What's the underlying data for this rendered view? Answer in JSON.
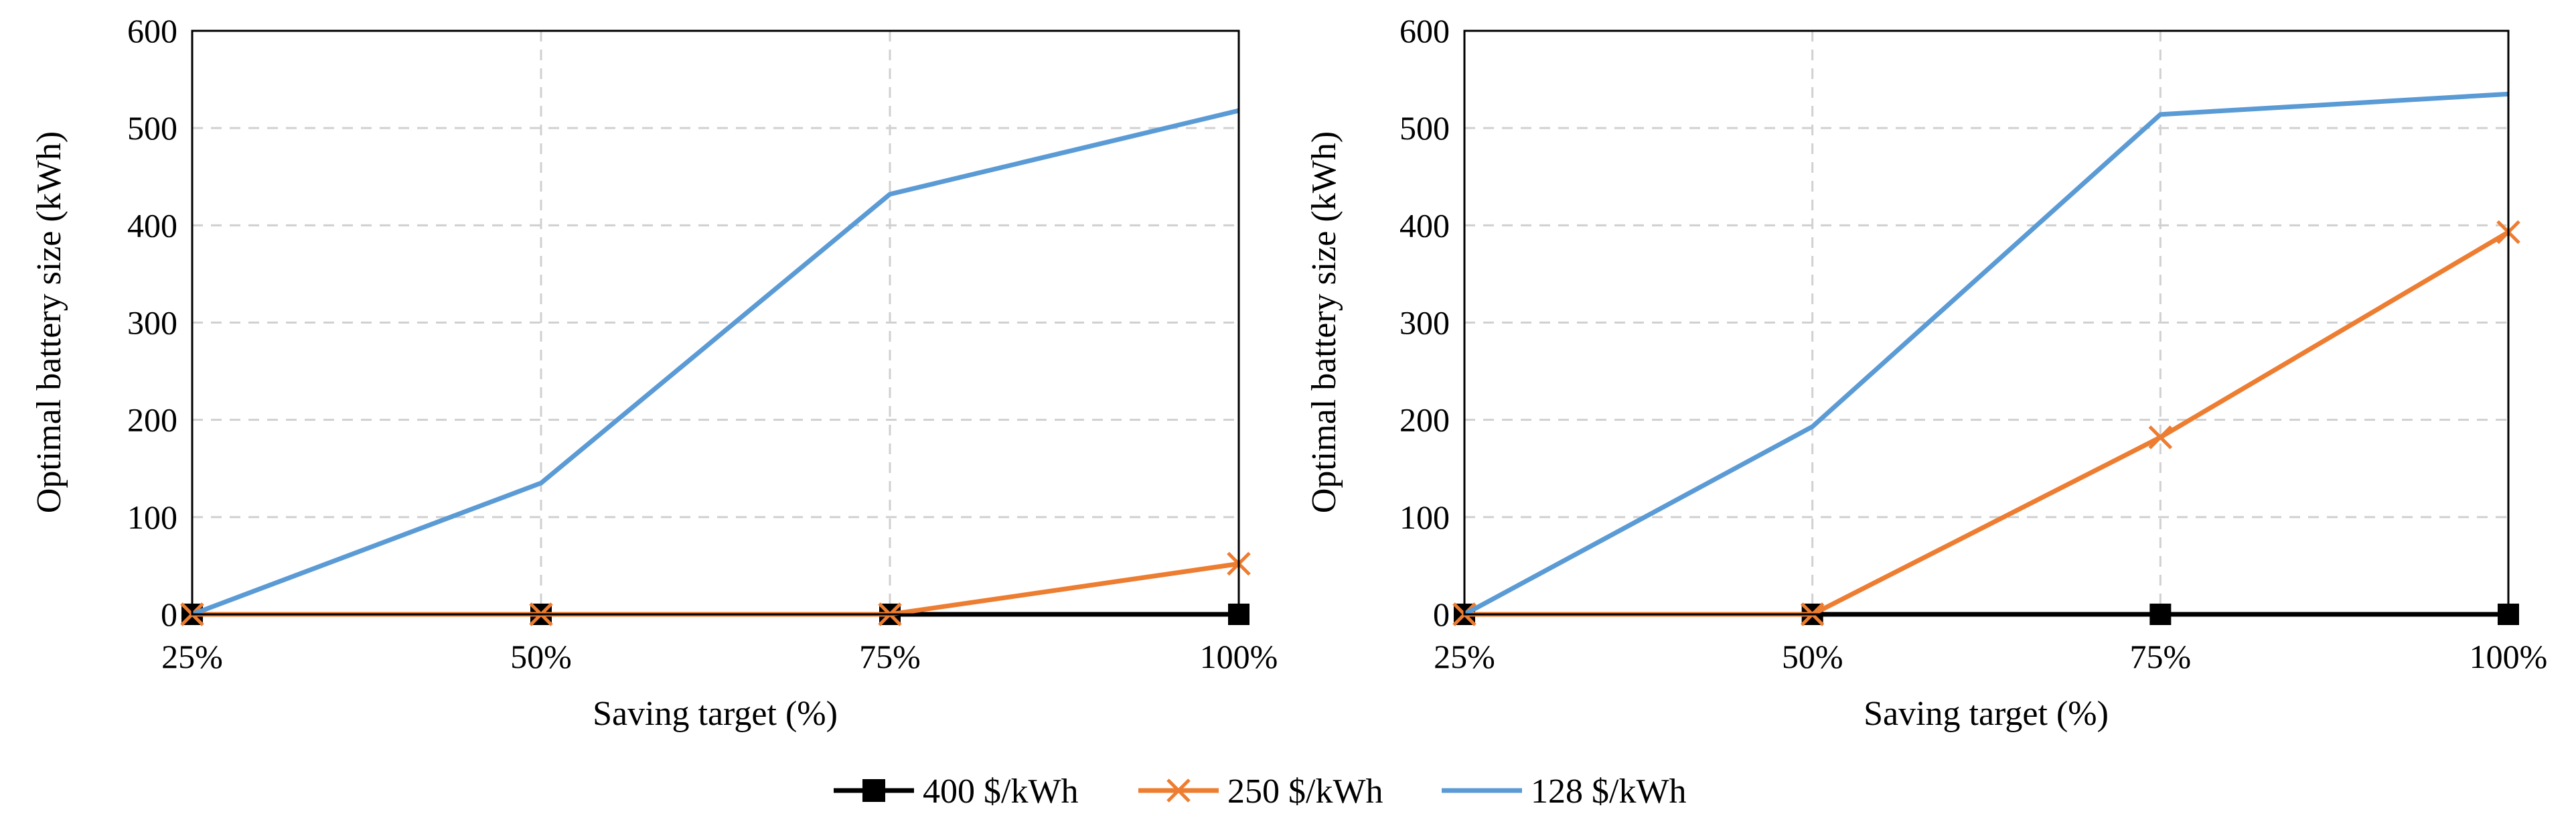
{
  "chart_data": [
    {
      "type": "line",
      "categories": [
        "25%",
        "50%",
        "75%",
        "100%"
      ],
      "xlabel": "Saving target (%)",
      "ylabel": "Optimal battery size (kWh)",
      "ylim": [
        0,
        600
      ],
      "yticks": [
        "0",
        "100",
        "200",
        "300",
        "400",
        "500",
        "600"
      ],
      "grid": true,
      "series": [
        {
          "name": "400 $/kWh",
          "color": "#000000",
          "marker": "square",
          "values": [
            0,
            0,
            0,
            0
          ]
        },
        {
          "name": "250 $/kWh",
          "color": "#ED7D31",
          "marker": "x",
          "values": [
            0,
            0,
            0,
            52
          ]
        },
        {
          "name": "128 $/kWh",
          "color": "#5B9BD5",
          "marker": "none",
          "values": [
            0,
            135,
            432,
            518
          ]
        }
      ]
    },
    {
      "type": "line",
      "categories": [
        "25%",
        "50%",
        "75%",
        "100%"
      ],
      "xlabel": "Saving target (%)",
      "ylabel": "Optimal battery size (kWh)",
      "ylim": [
        0,
        600
      ],
      "yticks": [
        "0",
        "100",
        "200",
        "300",
        "400",
        "500",
        "600"
      ],
      "grid": true,
      "series": [
        {
          "name": "400 $/kWh",
          "color": "#000000",
          "marker": "square",
          "values": [
            0,
            0,
            0,
            0
          ]
        },
        {
          "name": "250 $/kWh",
          "color": "#ED7D31",
          "marker": "x",
          "values": [
            0,
            0,
            182,
            393
          ]
        },
        {
          "name": "128 $/kWh",
          "color": "#5B9BD5",
          "marker": "none",
          "values": [
            0,
            193,
            514,
            535
          ]
        }
      ]
    }
  ],
  "legend": {
    "position": "bottom-center",
    "items": [
      {
        "label": "400 $/kWh",
        "color": "#000000",
        "marker": "square"
      },
      {
        "label": "250 $/kWh",
        "color": "#ED7D31",
        "marker": "x"
      },
      {
        "label": "128 $/kWh",
        "color": "#5B9BD5",
        "marker": "none"
      }
    ]
  }
}
